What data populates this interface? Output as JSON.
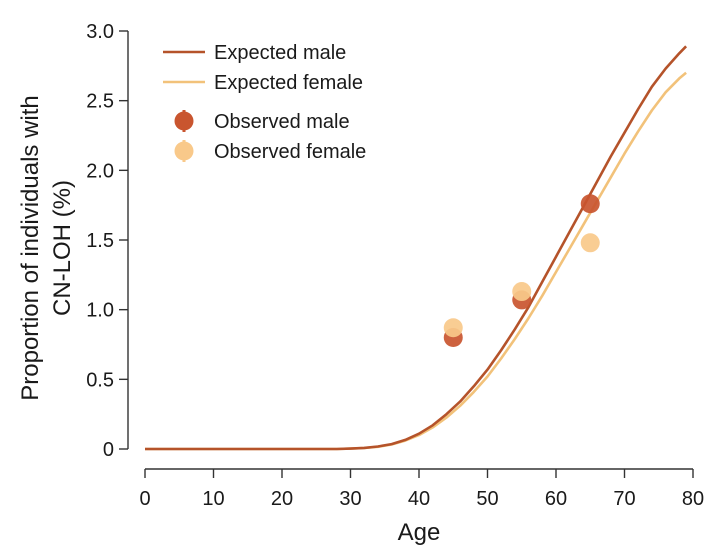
{
  "chart_data": {
    "type": "line",
    "title": "",
    "xlabel": "Age",
    "ylabel_lines": [
      "Proportion of individuals with",
      "CN-LOH (%)"
    ],
    "xlim": [
      0,
      80
    ],
    "ylim": [
      0,
      3.0
    ],
    "x_ticks": [
      0,
      10,
      20,
      30,
      40,
      50,
      60,
      70,
      80
    ],
    "x_tick_labels": [
      "0",
      "10",
      "20",
      "30",
      "40",
      "50",
      "60",
      "70",
      "80"
    ],
    "y_ticks": [
      0,
      0.5,
      1.0,
      1.5,
      2.0,
      2.5,
      3.0
    ],
    "y_tick_labels": [
      "0",
      "0.5",
      "1.0",
      "1.5",
      "2.0",
      "2.5",
      "3.0"
    ],
    "grid": false,
    "legend_position": "top-left",
    "series": [
      {
        "name": "Expected male",
        "kind": "line",
        "color": "#b5532a",
        "x": [
          0,
          28,
          30,
          32,
          34,
          36,
          38,
          40,
          42,
          44,
          46,
          48,
          50,
          52,
          54,
          56,
          58,
          60,
          62,
          64,
          66,
          68,
          70,
          72,
          74,
          76,
          78,
          79
        ],
        "y": [
          0,
          0,
          0.003,
          0.008,
          0.018,
          0.035,
          0.065,
          0.11,
          0.17,
          0.25,
          0.34,
          0.45,
          0.57,
          0.71,
          0.86,
          1.02,
          1.2,
          1.38,
          1.56,
          1.74,
          1.92,
          2.1,
          2.27,
          2.44,
          2.6,
          2.73,
          2.84,
          2.89
        ]
      },
      {
        "name": "Expected female",
        "kind": "line",
        "color": "#f2c27a",
        "x": [
          0,
          28,
          30,
          32,
          34,
          36,
          38,
          40,
          42,
          44,
          46,
          48,
          50,
          52,
          54,
          56,
          58,
          60,
          62,
          64,
          66,
          68,
          70,
          72,
          74,
          76,
          78,
          79
        ],
        "y": [
          0,
          0,
          0.003,
          0.007,
          0.016,
          0.032,
          0.06,
          0.1,
          0.155,
          0.225,
          0.31,
          0.41,
          0.52,
          0.65,
          0.79,
          0.94,
          1.1,
          1.27,
          1.44,
          1.61,
          1.78,
          1.95,
          2.12,
          2.28,
          2.43,
          2.56,
          2.66,
          2.7
        ]
      },
      {
        "name": "Observed male",
        "kind": "scatter",
        "color": "#c9552f",
        "x": [
          45,
          55,
          65
        ],
        "y": [
          0.8,
          1.07,
          1.76
        ]
      },
      {
        "name": "Observed female",
        "kind": "scatter",
        "color": "#f9c98a",
        "x": [
          45,
          55,
          65
        ],
        "y": [
          0.87,
          1.13,
          1.48
        ]
      }
    ]
  }
}
